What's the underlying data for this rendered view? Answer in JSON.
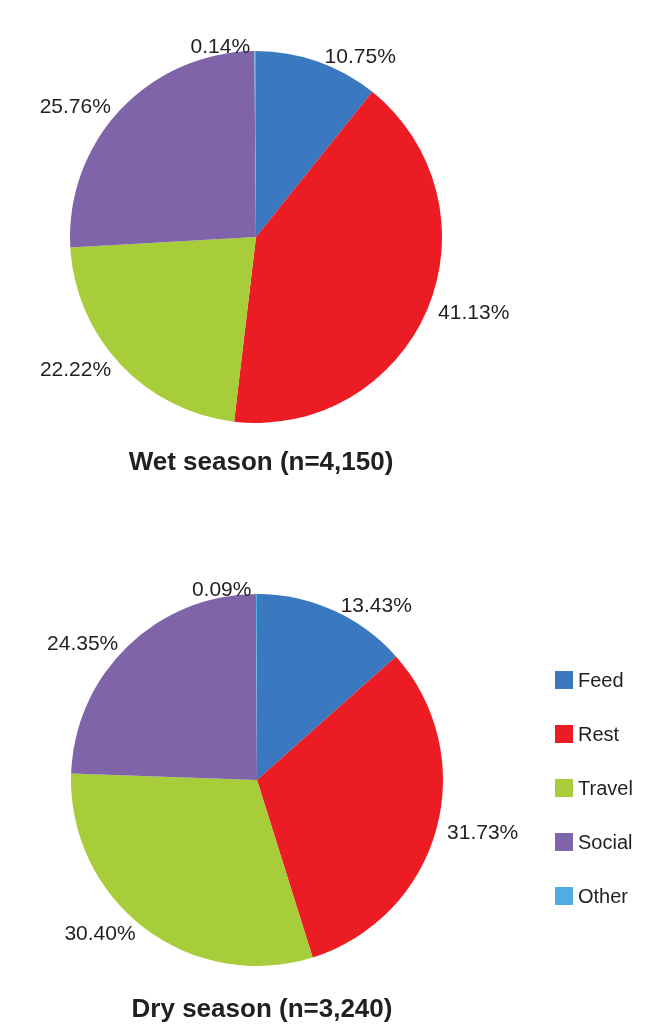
{
  "chart_data": [
    {
      "type": "pie",
      "title": "Wet season (n=4,150)",
      "categories": [
        null,
        null,
        null,
        null,
        null
      ],
      "values": [
        10.75,
        41.13,
        22.22,
        25.76,
        0.14
      ],
      "value_labels": [
        "10.75%",
        "41.13%",
        "22.22%",
        "25.76%",
        "0.14%"
      ],
      "colors": [
        "#3a78c0",
        "#ec1c24",
        "#a8cd3a",
        "#8064aa",
        "#4eaee0"
      ],
      "legend": false
    },
    {
      "type": "pie",
      "title": "Dry season (n=3,240)",
      "categories": [
        "Feed",
        "Rest",
        "Travel",
        "Social",
        "Other"
      ],
      "values": [
        13.43,
        31.73,
        30.4,
        24.35,
        0.09
      ],
      "value_labels": [
        "13.43%",
        "31.73%",
        "30.40%",
        "24.35%",
        "0.09%"
      ],
      "colors": [
        "#3a78c0",
        "#ec1c24",
        "#a8cd3a",
        "#8064aa",
        "#4eaee0"
      ],
      "legend": "right"
    }
  ]
}
